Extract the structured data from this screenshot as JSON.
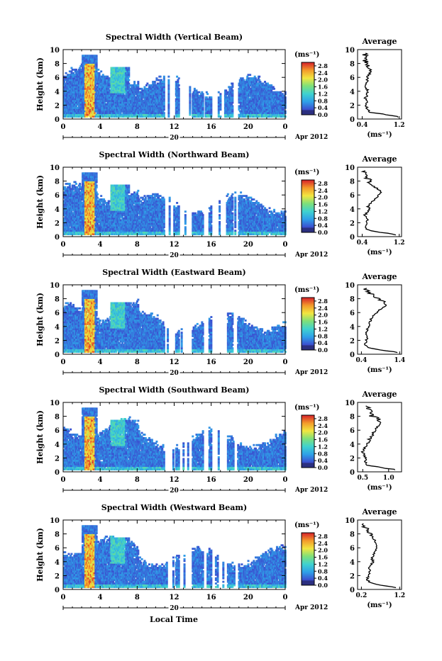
{
  "figure": {
    "xlabel": "Local Time",
    "colorbar_unit": "(ms⁻¹)",
    "avg_unit": "(ms⁻¹)",
    "avg_title": "Average",
    "ylabel": "Height (km)",
    "date_day": "20",
    "date_month": "Apr 2012",
    "x_ticks": [
      "0",
      "4",
      "8",
      "12",
      "16",
      "20",
      "0"
    ],
    "y_ticks": [
      "0",
      "2",
      "4",
      "6",
      "8",
      "10"
    ],
    "colorbar_ticks": [
      "0.0",
      "0.4",
      "0.8",
      "1.2",
      "1.6",
      "2.0",
      "2.4",
      "2.8"
    ]
  },
  "chart_data": [
    {
      "type": "heatmap",
      "title": "Spectral Width (Vertical Beam)",
      "xlabel": "Local Time",
      "ylabel": "Height (km)",
      "xlim": [
        0,
        24
      ],
      "ylim": [
        0,
        10
      ],
      "clim": [
        0,
        3.0
      ],
      "colorbar_unit": "(ms⁻¹)",
      "average_profile": {
        "title": "Average",
        "xlabel": "(ms⁻¹)",
        "xticks": [
          "0.4",
          "1.2"
        ],
        "xlim": [
          0.3,
          1.25
        ],
        "height_km": [
          0.3,
          0.6,
          1.0,
          1.5,
          2.0,
          2.5,
          3.0,
          3.5,
          4.0,
          4.5,
          5.0,
          5.5,
          6.0,
          6.5,
          7.0,
          7.5,
          8.0,
          8.5,
          9.0,
          9.5
        ],
        "value": [
          1.2,
          0.95,
          0.55,
          0.5,
          0.48,
          0.5,
          0.47,
          0.5,
          0.52,
          0.48,
          0.5,
          0.52,
          0.5,
          0.55,
          0.58,
          0.52,
          0.5,
          0.45,
          0.5,
          0.42
        ]
      }
    },
    {
      "type": "heatmap",
      "title": "Spectral Width (Northward Beam)",
      "xlabel": "Local Time",
      "ylabel": "Height (km)",
      "xlim": [
        0,
        24
      ],
      "ylim": [
        0,
        10
      ],
      "clim": [
        0,
        3.0
      ],
      "colorbar_unit": "(ms⁻¹)",
      "average_profile": {
        "title": "Average",
        "xlabel": "(ms⁻¹)",
        "xticks": [
          "0.4",
          "1.2"
        ],
        "xlim": [
          0.3,
          1.25
        ],
        "height_km": [
          0.3,
          0.6,
          1.0,
          1.5,
          2.0,
          2.5,
          3.0,
          3.5,
          4.0,
          4.5,
          5.0,
          5.5,
          6.0,
          6.5,
          7.0,
          7.5,
          8.0,
          8.5,
          9.0,
          9.5
        ],
        "value": [
          1.15,
          0.8,
          0.5,
          0.48,
          0.5,
          0.52,
          0.45,
          0.5,
          0.55,
          0.52,
          0.6,
          0.7,
          0.75,
          0.82,
          0.7,
          0.6,
          0.55,
          0.5,
          0.45,
          0.4
        ]
      }
    },
    {
      "type": "heatmap",
      "title": "Spectral Width (Eastward Beam)",
      "xlabel": "Local Time",
      "ylabel": "Height (km)",
      "xlim": [
        0,
        24
      ],
      "ylim": [
        0,
        10
      ],
      "clim": [
        0,
        3.0
      ],
      "colorbar_unit": "(ms⁻¹)",
      "average_profile": {
        "title": "Average",
        "xlabel": "(ms⁻¹)",
        "xticks": [
          "0.4",
          "1.4"
        ],
        "xlim": [
          0.3,
          1.45
        ],
        "height_km": [
          0.3,
          0.6,
          1.0,
          1.5,
          2.0,
          2.5,
          3.0,
          3.5,
          4.0,
          4.5,
          5.0,
          5.5,
          6.0,
          6.5,
          7.0,
          7.5,
          8.0,
          8.5,
          9.0,
          9.5
        ],
        "value": [
          1.35,
          0.9,
          0.55,
          0.5,
          0.52,
          0.55,
          0.5,
          0.55,
          0.6,
          0.62,
          0.65,
          0.7,
          0.8,
          0.9,
          1.05,
          1.0,
          0.85,
          0.7,
          0.6,
          0.5
        ]
      }
    },
    {
      "type": "heatmap",
      "title": "Spectral Width (Southward Beam)",
      "xlabel": "Local Time",
      "ylabel": "Height (km)",
      "xlim": [
        0,
        24
      ],
      "ylim": [
        0,
        10
      ],
      "clim": [
        0,
        3.0
      ],
      "colorbar_unit": "(ms⁻¹)",
      "average_profile": {
        "title": "Average",
        "xlabel": "(ms⁻¹)",
        "xticks": [
          "0.5",
          "1.0"
        ],
        "xlim": [
          0.4,
          1.25
        ],
        "height_km": [
          0.3,
          0.6,
          1.0,
          1.5,
          2.0,
          2.5,
          3.0,
          3.5,
          4.0,
          4.5,
          5.0,
          5.5,
          6.0,
          6.5,
          7.0,
          7.5,
          8.0,
          8.5,
          9.0,
          9.5
        ],
        "value": [
          1.15,
          0.85,
          0.58,
          0.55,
          0.56,
          0.52,
          0.5,
          0.55,
          0.6,
          0.62,
          0.65,
          0.7,
          0.75,
          0.78,
          0.85,
          0.8,
          0.7,
          0.65,
          0.6,
          0.55
        ]
      }
    },
    {
      "type": "heatmap",
      "title": "Spectral Width (Westward Beam)",
      "xlabel": "Local Time",
      "ylabel": "Height (km)",
      "xlim": [
        0,
        24
      ],
      "ylim": [
        0,
        10
      ],
      "clim": [
        0,
        3.0
      ],
      "colorbar_unit": "(ms⁻¹)",
      "average_profile": {
        "title": "Average",
        "xlabel": "(ms⁻¹)",
        "xticks": [
          "0.2",
          "1.2"
        ],
        "xlim": [
          0.1,
          1.25
        ],
        "height_km": [
          0.3,
          0.6,
          1.0,
          1.5,
          2.0,
          2.5,
          3.0,
          3.5,
          4.0,
          4.5,
          5.0,
          5.5,
          6.0,
          6.5,
          7.0,
          7.5,
          8.0,
          8.5,
          9.0,
          9.5
        ],
        "value": [
          1.1,
          0.7,
          0.4,
          0.35,
          0.38,
          0.42,
          0.4,
          0.45,
          0.5,
          0.48,
          0.52,
          0.55,
          0.6,
          0.58,
          0.55,
          0.5,
          0.45,
          0.35,
          0.3,
          0.25
        ]
      }
    }
  ]
}
